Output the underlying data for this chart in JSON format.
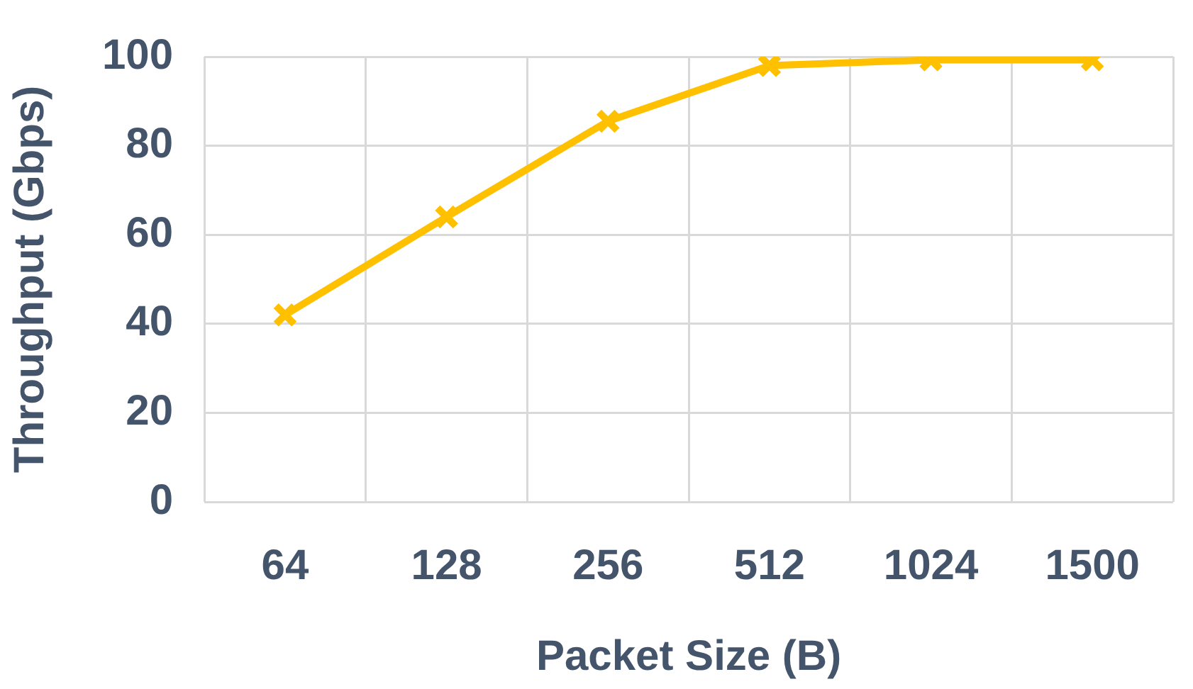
{
  "chart_data": {
    "type": "line",
    "xlabel": "Packet Size (B)",
    "ylabel": "Throughput (Gbps)",
    "categories": [
      "64",
      "128",
      "256",
      "512",
      "1024",
      "1500"
    ],
    "series": [
      {
        "color": "#ffc000",
        "values": [
          42,
          64,
          85.5,
          98,
          99.3,
          99.3
        ]
      }
    ],
    "ylim": [
      0,
      100
    ],
    "yticks": [
      0,
      20,
      40,
      60,
      80,
      100
    ],
    "grid": true,
    "legend": false,
    "marker": "cross",
    "line_style": "solid"
  }
}
